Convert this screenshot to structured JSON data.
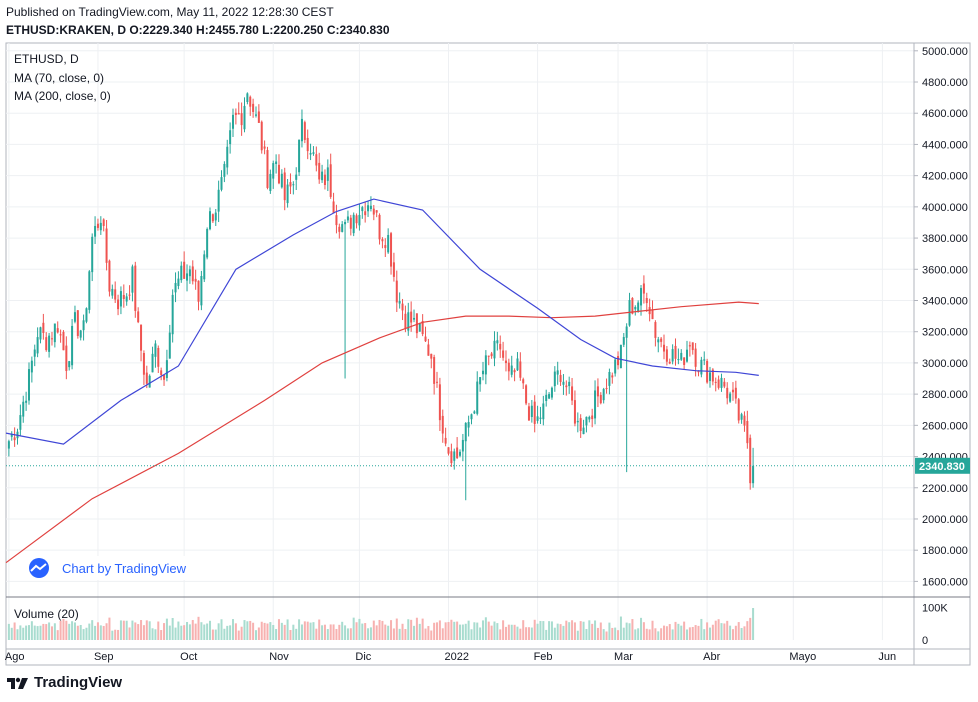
{
  "header": {
    "published": "Published on TradingView.com, May 11, 2022 12:28:30 CEST",
    "symbol": "ETHUSD:KRAKEN, D",
    "ohlc": "O:2229.340 H:2455.780 L:2200.250 C:2340.830"
  },
  "legend": {
    "symbol": "ETHUSD, D",
    "ma70": "MA (70, close, 0)",
    "ma200": "MA (200, close, 0)",
    "volume": "Volume (20)"
  },
  "watermark": {
    "text": "Chart by TradingView"
  },
  "footer": {
    "brand": "TradingView"
  },
  "colors": {
    "up": "#26a69a",
    "down": "#ef5350",
    "ma70": "#3f46d6",
    "ma200": "#e0413f",
    "vol_up": "#a8dccf",
    "vol_down": "#f7b1b0",
    "grid": "#eef0f3",
    "last": "#26a69a"
  },
  "chart_data": [
    {
      "type": "candlestick",
      "title": "ETHUSD, D",
      "ylim": [
        1500,
        5050
      ],
      "ylabels": [
        "5000.000",
        "4800.000",
        "4600.000",
        "4400.000",
        "4200.000",
        "4000.000",
        "3800.000",
        "3600.000",
        "3400.000",
        "3200.000",
        "3000.000",
        "2800.000",
        "2600.000",
        "2400.000",
        "2200.000",
        "2000.000",
        "1800.000",
        "1600.000"
      ],
      "xlabels": [
        "Ago",
        "Sep",
        "Oct",
        "Nov",
        "Dic",
        "2022",
        "Feb",
        "Mar",
        "Abr",
        "Mayo",
        "Jun"
      ],
      "xlabel_days": [
        1,
        32,
        62,
        93,
        123,
        154,
        185,
        213,
        244,
        274,
        305
      ],
      "last_price": {
        "value": 2340.83,
        "label": "2340.830"
      },
      "x_start": "2021-08-01",
      "x_end": "2022-06-13",
      "anchors": [
        [
          1,
          2500
        ],
        [
          4,
          2600
        ],
        [
          8,
          2900
        ],
        [
          11,
          3200
        ],
        [
          14,
          3150
        ],
        [
          18,
          3250
        ],
        [
          21,
          3000
        ],
        [
          24,
          3250
        ],
        [
          27,
          3200
        ],
        [
          30,
          3800
        ],
        [
          33,
          3950
        ],
        [
          36,
          3500
        ],
        [
          39,
          3400
        ],
        [
          42,
          3450
        ],
        [
          44,
          3550
        ],
        [
          46,
          3200
        ],
        [
          49,
          2850
        ],
        [
          52,
          3100
        ],
        [
          55,
          2900
        ],
        [
          58,
          3450
        ],
        [
          61,
          3550
        ],
        [
          64,
          3600
        ],
        [
          67,
          3400
        ],
        [
          70,
          3900
        ],
        [
          73,
          4000
        ],
        [
          76,
          4200
        ],
        [
          79,
          4550
        ],
        [
          82,
          4600
        ],
        [
          84,
          4750
        ],
        [
          88,
          4500
        ],
        [
          91,
          4200
        ],
        [
          94,
          4300
        ],
        [
          97,
          4050
        ],
        [
          100,
          4150
        ],
        [
          103,
          4500
        ],
        [
          106,
          4400
        ],
        [
          109,
          4150
        ],
        [
          112,
          4200
        ],
        [
          115,
          3950
        ],
        [
          118,
          3850
        ],
        [
          121,
          3950
        ],
        [
          124,
          4000
        ],
        [
          127,
          4050
        ],
        [
          130,
          3850
        ],
        [
          133,
          3800
        ],
        [
          136,
          3450
        ],
        [
          139,
          3300
        ],
        [
          142,
          3250
        ],
        [
          145,
          3150
        ],
        [
          148,
          3050
        ],
        [
          151,
          2700
        ],
        [
          154,
          2450
        ],
        [
          157,
          2400
        ],
        [
          160,
          2550
        ],
        [
          163,
          2750
        ],
        [
          166,
          2950
        ],
        [
          169,
          3050
        ],
        [
          172,
          3100
        ],
        [
          175,
          2900
        ],
        [
          178,
          2950
        ],
        [
          181,
          2750
        ],
        [
          184,
          2600
        ],
        [
          187,
          2700
        ],
        [
          190,
          2850
        ],
        [
          193,
          2950
        ],
        [
          196,
          2800
        ],
        [
          199,
          2600
        ],
        [
          202,
          2650
        ],
        [
          205,
          2750
        ],
        [
          208,
          2850
        ],
        [
          211,
          2950
        ],
        [
          214,
          3050
        ],
        [
          217,
          3350
        ],
        [
          220,
          3400
        ],
        [
          223,
          3450
        ],
        [
          226,
          3200
        ],
        [
          229,
          3100
        ],
        [
          232,
          3050
        ],
        [
          235,
          3000
        ],
        [
          238,
          3150
        ],
        [
          241,
          3000
        ],
        [
          244,
          2950
        ],
        [
          247,
          2900
        ],
        [
          250,
          2850
        ],
        [
          253,
          2750
        ],
        [
          256,
          2600
        ],
        [
          258,
          2500
        ],
        [
          260,
          2340
        ]
      ],
      "ma70": [
        [
          0,
          2550
        ],
        [
          20,
          2480
        ],
        [
          40,
          2760
        ],
        [
          60,
          2980
        ],
        [
          80,
          3600
        ],
        [
          100,
          3820
        ],
        [
          115,
          3970
        ],
        [
          128,
          4050
        ],
        [
          145,
          3980
        ],
        [
          165,
          3600
        ],
        [
          185,
          3350
        ],
        [
          200,
          3150
        ],
        [
          212,
          3030
        ],
        [
          225,
          2980
        ],
        [
          240,
          2950
        ],
        [
          254,
          2940
        ],
        [
          262,
          2920
        ]
      ],
      "ma200": [
        [
          0,
          1720
        ],
        [
          30,
          2130
        ],
        [
          60,
          2420
        ],
        [
          90,
          2760
        ],
        [
          110,
          3000
        ],
        [
          130,
          3160
        ],
        [
          145,
          3260
        ],
        [
          160,
          3300
        ],
        [
          175,
          3300
        ],
        [
          190,
          3290
        ],
        [
          205,
          3300
        ],
        [
          220,
          3330
        ],
        [
          235,
          3360
        ],
        [
          255,
          3390
        ],
        [
          262,
          3380
        ]
      ],
      "wick_spikes": [
        [
          160,
          2120
        ],
        [
          216,
          2300
        ],
        [
          118,
          2900
        ]
      ]
    },
    {
      "type": "bar",
      "title": "Volume (20)",
      "ylabels": [
        "100K",
        "0"
      ],
      "ylim": [
        0,
        130000
      ]
    }
  ]
}
